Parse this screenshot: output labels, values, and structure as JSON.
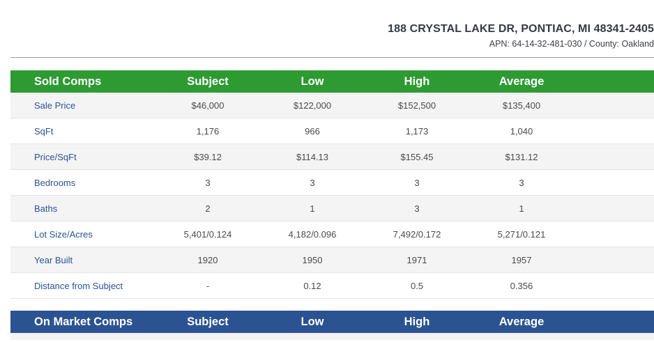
{
  "header": {
    "address": "188 CRYSTAL LAKE DR, PONTIAC, MI 48341-2405",
    "apn_line": "APN: 64-14-32-481-030 / County: Oakland"
  },
  "sold_comps": {
    "title": "Sold Comps",
    "columns": [
      "Subject",
      "Low",
      "High",
      "Average"
    ],
    "rows": [
      {
        "label": "Sale Price",
        "values": [
          "$46,000",
          "$122,000",
          "$152,500",
          "$135,400"
        ]
      },
      {
        "label": "SqFt",
        "values": [
          "1,176",
          "966",
          "1,173",
          "1,040"
        ]
      },
      {
        "label": "Price/SqFt",
        "values": [
          "$39.12",
          "$114.13",
          "$155.45",
          "$131.12"
        ]
      },
      {
        "label": "Bedrooms",
        "values": [
          "3",
          "3",
          "3",
          "3"
        ]
      },
      {
        "label": "Baths",
        "values": [
          "2",
          "1",
          "3",
          "1"
        ]
      },
      {
        "label": "Lot Size/Acres",
        "values": [
          "5,401/0.124",
          "4,182/0.096",
          "7,492/0.172",
          "5,271/0.121"
        ]
      },
      {
        "label": "Year Built",
        "values": [
          "1920",
          "1950",
          "1971",
          "1957"
        ]
      },
      {
        "label": "Distance from Subject",
        "values": [
          "-",
          "0.12",
          "0.5",
          "0.356"
        ]
      }
    ]
  },
  "on_market_comps": {
    "title": "On Market Comps",
    "columns": [
      "Subject",
      "Low",
      "High",
      "Average"
    ]
  },
  "colors": {
    "sold_header": "#2e9a32",
    "market_header": "#2b5392",
    "label_text": "#2a5296"
  }
}
